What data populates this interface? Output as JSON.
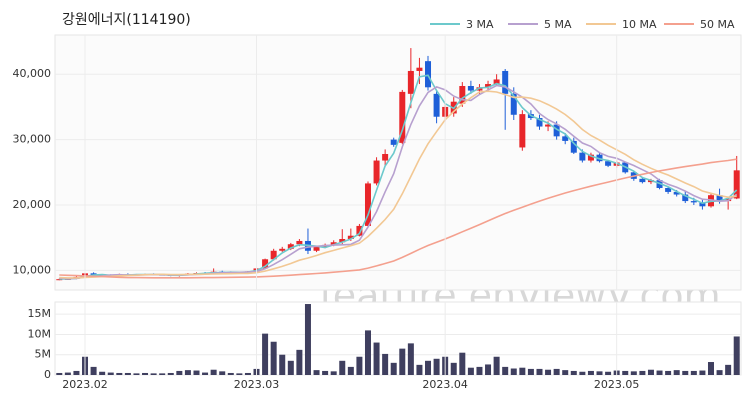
{
  "watermark": "feature.enViewV.com",
  "chart_data": [
    {
      "type": "candlestick",
      "title": "강원에너지(114190)",
      "up_color": "#e8262a",
      "down_color": "#1e5fd8",
      "open": [
        8600,
        8650,
        8700,
        9000,
        9550,
        9300,
        9250,
        9200,
        9400,
        9300,
        9350,
        9400,
        9350,
        9300,
        9150,
        9300,
        9500,
        9600,
        9550,
        9800,
        9700,
        9650,
        9750,
        9850,
        10300,
        11700,
        13000,
        13300,
        14000,
        14500,
        13000,
        13600,
        13900,
        14300,
        14800,
        15300,
        16800,
        23300,
        26800,
        30000,
        29500,
        37000,
        40500,
        42000,
        37000,
        33500,
        34000,
        35500,
        38200,
        37500,
        38000,
        38500,
        40500,
        37000,
        28800,
        33900,
        33300,
        32000,
        32300,
        30500,
        29800,
        28000,
        26800,
        27700,
        26700,
        26000,
        26500,
        25000,
        24000,
        23500,
        23800,
        22600,
        22000,
        21600,
        20600,
        20400,
        19800,
        21500,
        20600,
        21000
      ],
      "high": [
        8750,
        8800,
        9100,
        9700,
        9700,
        9450,
        9400,
        9500,
        9550,
        9450,
        9500,
        9550,
        9500,
        9400,
        9350,
        9600,
        9700,
        9750,
        10300,
        9950,
        9850,
        9800,
        9900,
        10400,
        11800,
        13300,
        13600,
        14200,
        14800,
        16400,
        13800,
        14100,
        14600,
        16300,
        16400,
        17100,
        23600,
        27300,
        28500,
        30300,
        37600,
        44000,
        42500,
        42800,
        37500,
        35500,
        36500,
        38800,
        39000,
        38500,
        39000,
        40000,
        40800,
        38000,
        34500,
        34500,
        33800,
        32800,
        32800,
        31000,
        30300,
        28500,
        28000,
        28000,
        26900,
        26800,
        26600,
        25200,
        24300,
        24000,
        24000,
        22800,
        22300,
        22100,
        21100,
        20800,
        21800,
        22500,
        21300,
        27500
      ],
      "low": [
        8500,
        8550,
        8650,
        8950,
        9200,
        9150,
        9100,
        9150,
        9250,
        9200,
        9250,
        9300,
        9250,
        9100,
        9050,
        9250,
        9400,
        9500,
        9500,
        9600,
        9550,
        9600,
        9650,
        9800,
        10200,
        11500,
        12800,
        13100,
        13700,
        12500,
        12800,
        13400,
        13700,
        14000,
        14500,
        15200,
        16700,
        23000,
        26000,
        28900,
        29300,
        34800,
        38500,
        37500,
        32500,
        32800,
        33500,
        35000,
        37000,
        37000,
        37500,
        38200,
        31500,
        33000,
        28300,
        33000,
        31500,
        31300,
        30000,
        29300,
        27800,
        26500,
        26500,
        26500,
        25800,
        25700,
        24800,
        23700,
        23300,
        23200,
        22400,
        21700,
        21300,
        20300,
        20000,
        19300,
        19600,
        20200,
        19300,
        20900
      ],
      "close": [
        8650,
        8700,
        9000,
        9550,
        9300,
        9250,
        9200,
        9400,
        9300,
        9350,
        9400,
        9350,
        9300,
        9150,
        9300,
        9500,
        9600,
        9550,
        9800,
        9700,
        9650,
        9750,
        9850,
        10300,
        11700,
        13000,
        13300,
        14000,
        14500,
        13000,
        13600,
        13900,
        14300,
        14800,
        15300,
        16800,
        23300,
        26800,
        27800,
        29200,
        37300,
        40500,
        41000,
        38000,
        33500,
        35000,
        35800,
        38200,
        37500,
        38000,
        38500,
        39200,
        37000,
        33800,
        33900,
        33300,
        32000,
        32300,
        30500,
        29800,
        28000,
        26800,
        27700,
        26700,
        26000,
        26500,
        25000,
        24000,
        23500,
        23800,
        22600,
        22000,
        21600,
        20600,
        20400,
        19800,
        21500,
        20600,
        21000,
        25300
      ],
      "series": [
        {
          "name": "3 MA",
          "color": "#6cc9cc",
          "values": [
            8700,
            8700,
            8780,
            9080,
            9280,
            9370,
            9250,
            9280,
            9300,
            9350,
            9350,
            9370,
            9350,
            9270,
            9250,
            9320,
            9470,
            9550,
            9650,
            9680,
            9720,
            9700,
            9750,
            9970,
            10620,
            11670,
            12670,
            13430,
            13930,
            13830,
            13700,
            13500,
            13930,
            14330,
            14800,
            15630,
            18470,
            22300,
            25970,
            27930,
            31430,
            35670,
            39600,
            39830,
            37500,
            35500,
            34770,
            36330,
            37170,
            37900,
            38000,
            38570,
            38230,
            36670,
            34900,
            33670,
            33070,
            32530,
            31600,
            30870,
            29430,
            28200,
            27500,
            27070,
            26800,
            26400,
            25830,
            25170,
            24170,
            23770,
            23300,
            22800,
            22070,
            21400,
            20870,
            20270,
            20570,
            20630,
            21030,
            22300
          ]
        },
        {
          "name": "5 MA",
          "color": "#b7a0cf",
          "values": [
            8800,
            8750,
            8780,
            8980,
            9040,
            9160,
            9300,
            9340,
            9290,
            9300,
            9330,
            9360,
            9340,
            9310,
            9300,
            9320,
            9370,
            9420,
            9550,
            9630,
            9660,
            9690,
            9750,
            9850,
            10250,
            10920,
            11630,
            12460,
            13300,
            13560,
            13680,
            13800,
            13860,
            13920,
            13980,
            14620,
            16620,
            19000,
            22000,
            24780,
            28880,
            32320,
            35160,
            37200,
            38060,
            37600,
            36660,
            36100,
            36000,
            36900,
            37600,
            38280,
            38040,
            37300,
            36480,
            35440,
            34000,
            33060,
            32400,
            31580,
            30520,
            29480,
            28960,
            28000,
            27440,
            27140,
            26580,
            26040,
            25400,
            24760,
            23780,
            23180,
            22700,
            22120,
            21440,
            20880,
            20780,
            20580,
            20660,
            21640
          ]
        },
        {
          "name": "10 MA",
          "color": "#f2c894",
          "values": [
            8900,
            8850,
            8850,
            8920,
            8980,
            9050,
            9100,
            9170,
            9240,
            9270,
            9340,
            9370,
            9400,
            9360,
            9360,
            9380,
            9400,
            9420,
            9440,
            9480,
            9500,
            9530,
            9540,
            9650,
            9890,
            10240,
            10610,
            11060,
            11560,
            11890,
            12280,
            12700,
            13060,
            13420,
            13780,
            14160,
            15180,
            16450,
            17780,
            19340,
            21710,
            24370,
            27040,
            29360,
            31230,
            33050,
            34300,
            35440,
            36410,
            37290,
            37410,
            37280,
            36880,
            36460,
            36500,
            36330,
            35950,
            35360,
            34660,
            33840,
            32790,
            31550,
            30630,
            29920,
            29130,
            28450,
            27750,
            26920,
            26220,
            25610,
            25070,
            24590,
            23980,
            23370,
            22810,
            22140,
            21790,
            21450,
            21200,
            21350
          ]
        },
        {
          "name": "50 MA",
          "color": "#f4a08e",
          "values": [
            9300,
            9250,
            9200,
            9150,
            9100,
            9050,
            9000,
            8950,
            8900,
            8900,
            8880,
            8870,
            8860,
            8860,
            8860,
            8870,
            8880,
            8890,
            8900,
            8920,
            8940,
            8960,
            8980,
            9000,
            9050,
            9110,
            9180,
            9260,
            9350,
            9430,
            9520,
            9620,
            9720,
            9830,
            9950,
            10080,
            10350,
            10690,
            11050,
            11440,
            11980,
            12600,
            13230,
            13800,
            14290,
            14800,
            15330,
            15900,
            16450,
            17000,
            17570,
            18150,
            18700,
            19190,
            19670,
            20140,
            20590,
            21040,
            21440,
            21840,
            22200,
            22540,
            22880,
            23200,
            23510,
            23830,
            24130,
            24420,
            24690,
            24970,
            25220,
            25450,
            25680,
            25880,
            26070,
            26260,
            26480,
            26650,
            26800,
            27000
          ]
        }
      ],
      "ylim": [
        7000,
        46000
      ],
      "yticks": [
        {
          "value": 10000,
          "label": "10,000"
        },
        {
          "value": 20000,
          "label": "20,000"
        },
        {
          "value": 30000,
          "label": "30,000"
        },
        {
          "value": 40000,
          "label": "40,000"
        }
      ],
      "grid": true
    },
    {
      "type": "bar",
      "color": "#3f3f5f",
      "categories": [
        null,
        null,
        null,
        "2023.02",
        null,
        null,
        null,
        null,
        null,
        null,
        null,
        null,
        null,
        null,
        null,
        null,
        null,
        null,
        null,
        null,
        null,
        null,
        null,
        "2023.03",
        null,
        null,
        null,
        null,
        null,
        null,
        null,
        null,
        null,
        null,
        null,
        null,
        null,
        null,
        null,
        null,
        null,
        null,
        null,
        null,
        null,
        "2023.04",
        null,
        null,
        null,
        null,
        null,
        null,
        null,
        null,
        null,
        null,
        null,
        null,
        null,
        null,
        null,
        null,
        null,
        null,
        null,
        "2023.05",
        null,
        null,
        null,
        null,
        null,
        null,
        null,
        null,
        null,
        null,
        null,
        null,
        null,
        null
      ],
      "values": [
        500000,
        600000,
        1000000,
        4500000,
        2000000,
        800000,
        600000,
        500000,
        500000,
        400000,
        500000,
        400000,
        400000,
        500000,
        1000000,
        1200000,
        1100000,
        600000,
        1300000,
        900000,
        500000,
        400000,
        500000,
        1500000,
        10200000,
        8200000,
        5000000,
        3500000,
        6200000,
        17500000,
        1200000,
        1000000,
        900000,
        3500000,
        2000000,
        4500000,
        11000000,
        8000000,
        5200000,
        3000000,
        6500000,
        7800000,
        2500000,
        3500000,
        4000000,
        4500000,
        3000000,
        5500000,
        1800000,
        2000000,
        2600000,
        4500000,
        2000000,
        1600000,
        1800000,
        1500000,
        1500000,
        1300000,
        1500000,
        1200000,
        1000000,
        800000,
        1000000,
        900000,
        800000,
        1100000,
        1000000,
        900000,
        1000000,
        1300000,
        1100000,
        1000000,
        1200000,
        1000000,
        1000000,
        1100000,
        3200000,
        1200000,
        2500000,
        9500000
      ],
      "ylim": [
        0,
        18000000
      ],
      "yticks": [
        0,
        {
          "value": 5000000,
          "label": "5M"
        },
        {
          "value": 10000000,
          "label": "10M"
        },
        {
          "value": 15000000,
          "label": "15M"
        }
      ],
      "grid": true
    }
  ]
}
